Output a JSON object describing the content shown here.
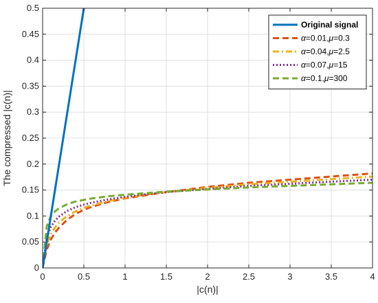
{
  "chart_data": {
    "type": "line",
    "title": "",
    "xlabel": "|c(n)|",
    "ylabel": "The compressed |c(n)|",
    "xlim": [
      0,
      4
    ],
    "ylim": [
      0,
      0.5
    ],
    "xticks": [
      0,
      0.5,
      1,
      1.5,
      2,
      2.5,
      3,
      3.5,
      4
    ],
    "yticks": [
      0,
      0.05,
      0.1,
      0.15,
      0.2,
      0.25,
      0.3,
      0.35,
      0.4,
      0.45,
      0.5
    ],
    "xtick_labels": [
      "0",
      "0.5",
      "1",
      "1.5",
      "2",
      "2.5",
      "3",
      "3.5",
      "4"
    ],
    "ytick_labels": [
      "0",
      "0.05",
      "0.1",
      "0.15",
      "0.2",
      "0.25",
      "0.3",
      "0.35",
      "0.4",
      "0.45",
      "0.5"
    ],
    "grid": true,
    "legend_position": "top-right",
    "series": [
      {
        "name": "Original signal",
        "color": "#0072BD",
        "style": "solid",
        "x": [
          0,
          0.5
        ],
        "y": [
          0,
          0.5
        ]
      },
      {
        "name_parts": [
          "α",
          "=0.01,",
          "μ",
          "=0.3"
        ],
        "color": "#D95319",
        "style": "dashed",
        "x": [
          0,
          0.05,
          0.1,
          0.15,
          0.2,
          0.3,
          0.4,
          0.5,
          0.6,
          0.8,
          1,
          1.25,
          1.5,
          1.75,
          2,
          2.5,
          3,
          3.5,
          4
        ],
        "y": [
          0,
          0.035,
          0.055,
          0.068,
          0.078,
          0.093,
          0.104,
          0.112,
          0.118,
          0.127,
          0.134,
          0.14,
          0.146,
          0.151,
          0.156,
          0.164,
          0.17,
          0.176,
          0.182
        ]
      },
      {
        "name_parts": [
          "α",
          "=0.04,",
          "μ",
          "=2.5"
        ],
        "color": "#EDB120",
        "style": "dashdot",
        "x": [
          0,
          0.05,
          0.1,
          0.15,
          0.2,
          0.3,
          0.4,
          0.5,
          0.6,
          0.8,
          1,
          1.25,
          1.5,
          1.75,
          2,
          2.5,
          3,
          3.5,
          4
        ],
        "y": [
          0,
          0.045,
          0.065,
          0.078,
          0.088,
          0.1,
          0.109,
          0.116,
          0.121,
          0.129,
          0.135,
          0.141,
          0.146,
          0.15,
          0.154,
          0.161,
          0.166,
          0.171,
          0.176
        ]
      },
      {
        "name_parts": [
          "α",
          "=0.07,",
          "μ",
          "=15"
        ],
        "color": "#7E2F8E",
        "style": "dotted",
        "x": [
          0,
          0.05,
          0.1,
          0.15,
          0.2,
          0.3,
          0.4,
          0.5,
          0.6,
          0.8,
          1,
          1.25,
          1.5,
          1.75,
          2,
          2.5,
          3,
          3.5,
          4
        ],
        "y": [
          0,
          0.058,
          0.079,
          0.091,
          0.099,
          0.11,
          0.117,
          0.122,
          0.126,
          0.132,
          0.137,
          0.142,
          0.146,
          0.149,
          0.152,
          0.158,
          0.162,
          0.166,
          0.17
        ]
      },
      {
        "name_parts": [
          "α",
          "=0.1,",
          "μ",
          "=300"
        ],
        "color": "#77AC30",
        "style": "dashed",
        "x": [
          0,
          0.05,
          0.1,
          0.15,
          0.2,
          0.3,
          0.4,
          0.5,
          0.6,
          0.8,
          1,
          1.25,
          1.5,
          1.75,
          2,
          2.5,
          3,
          3.5,
          4
        ],
        "y": [
          0,
          0.08,
          0.1,
          0.109,
          0.115,
          0.123,
          0.128,
          0.131,
          0.134,
          0.138,
          0.141,
          0.144,
          0.147,
          0.149,
          0.151,
          0.155,
          0.158,
          0.161,
          0.164
        ]
      }
    ]
  }
}
